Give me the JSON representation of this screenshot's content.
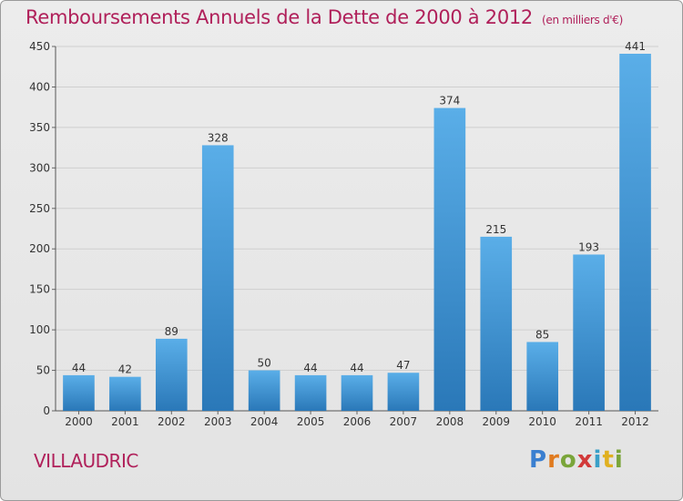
{
  "header": {
    "title": "Remboursements Annuels de la Dette de 2000 à 2012",
    "unit": "(en milliers d'€)"
  },
  "footer": {
    "place": "VILLAUDRIC",
    "logo": [
      "P",
      "r",
      "o",
      "x",
      "i",
      "t",
      "i"
    ]
  },
  "colors": {
    "title": "#b0205a",
    "bar_top": "#5aaee8",
    "bar_bottom": "#2a78b8",
    "grid": "#cfcfcf"
  },
  "chart_data": {
    "type": "bar",
    "title": "Remboursements Annuels de la Dette de 2000 à 2012",
    "xlabel": "",
    "ylabel": "",
    "categories": [
      "2000",
      "2001",
      "2002",
      "2003",
      "2004",
      "2005",
      "2006",
      "2007",
      "2008",
      "2009",
      "2010",
      "2011",
      "2012"
    ],
    "values": [
      44,
      42,
      89,
      328,
      50,
      44,
      44,
      47,
      374,
      215,
      85,
      193,
      441
    ],
    "data_labels": [
      "44",
      "42",
      "89",
      "328",
      "50",
      "44",
      "44",
      "47",
      "374",
      "215",
      "85",
      "193",
      "441"
    ],
    "ylim": [
      0,
      450
    ],
    "yticks": [
      0,
      50,
      100,
      150,
      200,
      250,
      300,
      350,
      400,
      450
    ],
    "grid": true,
    "legend": "none"
  }
}
